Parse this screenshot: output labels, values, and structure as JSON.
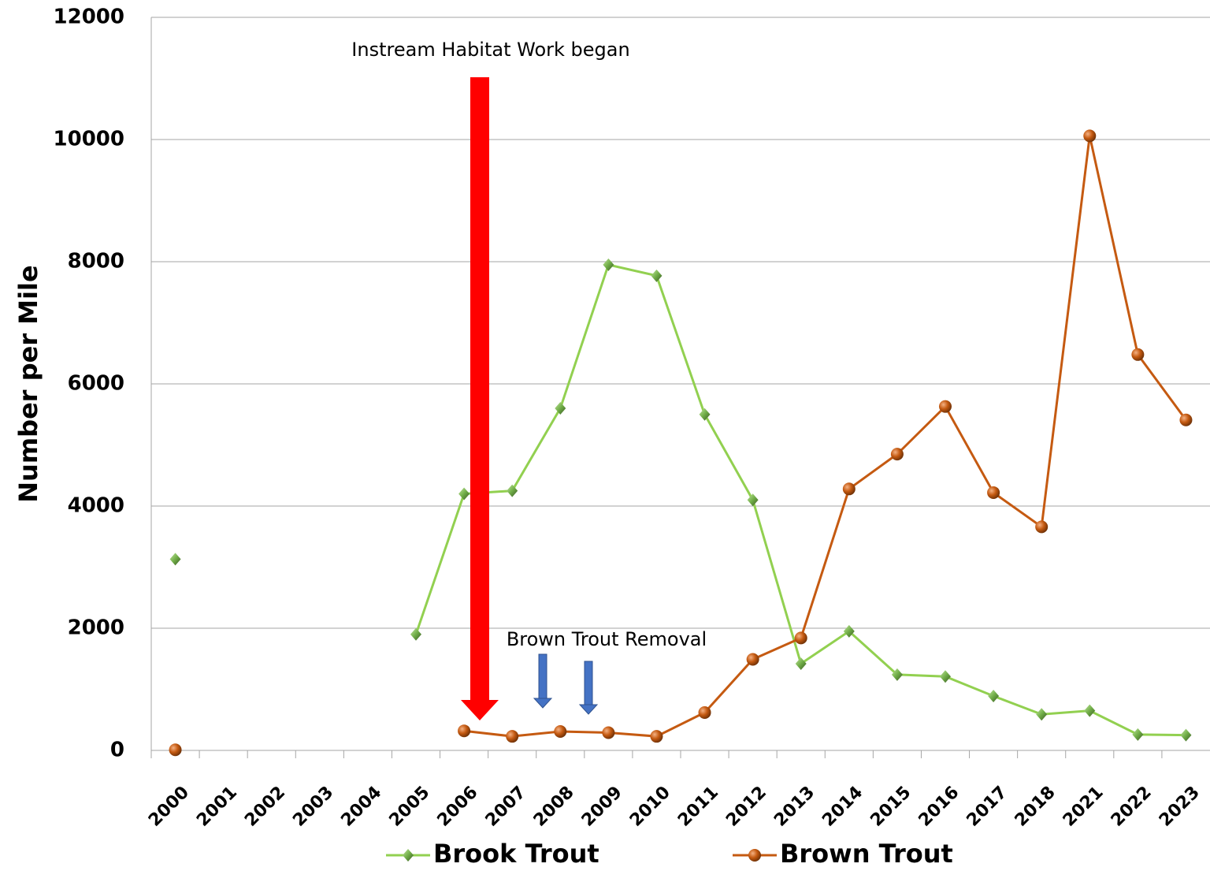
{
  "chart_data": {
    "type": "line",
    "y_label": "Number per Mile",
    "annotations": [
      "Instream Habitat Work began",
      "Brown Trout Removal"
    ],
    "categories": [
      "2000",
      "2001",
      "2002",
      "2003",
      "2004",
      "2005",
      "2006",
      "2007",
      "2008",
      "2009",
      "2010",
      "2011",
      "2012",
      "2013",
      "2014",
      "2015",
      "2016",
      "2017",
      "2018",
      "2021",
      "2022",
      "2023"
    ],
    "series": [
      {
        "name": "Brook Trout",
        "color": "#92d050",
        "marker": "diamond",
        "values": [
          3130,
          null,
          null,
          null,
          null,
          1900,
          4200,
          4250,
          5600,
          7950,
          7770,
          5500,
          4100,
          1420,
          1950,
          1240,
          1210,
          890,
          590,
          650,
          260,
          250
        ]
      },
      {
        "name": "Brown Trout",
        "color": "#c55a11",
        "marker": "circle",
        "values": [
          10,
          null,
          null,
          null,
          null,
          null,
          320,
          230,
          310,
          290,
          230,
          620,
          1490,
          1840,
          4280,
          4850,
          5630,
          4220,
          3660,
          10060,
          6480,
          5410
        ]
      }
    ],
    "ylim": [
      0,
      12000
    ],
    "yticks": [
      0,
      2000,
      4000,
      6000,
      8000,
      10000,
      12000
    ],
    "grid": true
  }
}
